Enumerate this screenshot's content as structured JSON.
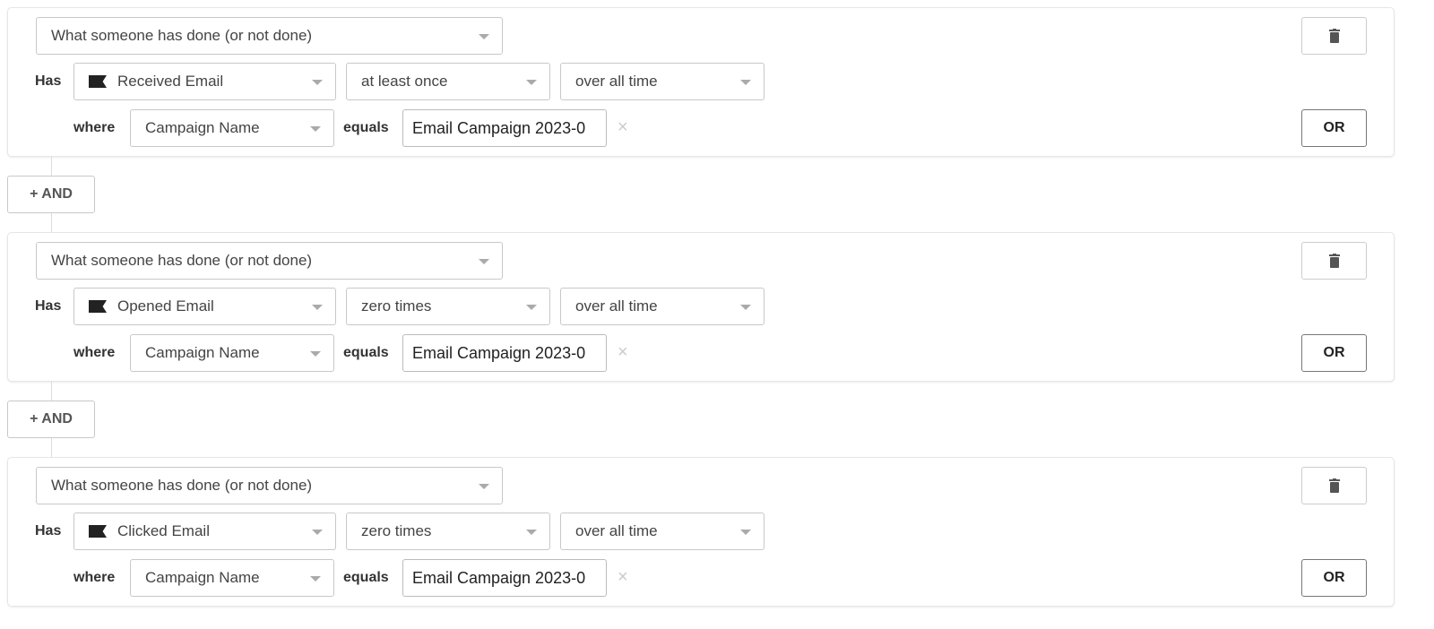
{
  "and_label": "+ AND",
  "conditions": [
    {
      "type": "What someone has done (or not done)",
      "has_label": "Has",
      "event": "Received Email",
      "event_icon": "flag-icon",
      "frequency": "at least once",
      "timeframe": "over all time",
      "where_label": "where",
      "property": "Campaign Name",
      "operator": "equals",
      "value": "Email Campaign 2023-0",
      "clear": "×",
      "or_label": "OR"
    },
    {
      "type": "What someone has done (or not done)",
      "has_label": "Has",
      "event": "Opened Email",
      "event_icon": "flag-icon",
      "frequency": "zero times",
      "timeframe": "over all time",
      "where_label": "where",
      "property": "Campaign Name",
      "operator": "equals",
      "value": "Email Campaign 2023-0",
      "clear": "×",
      "or_label": "OR"
    },
    {
      "type": "What someone has done (or not done)",
      "has_label": "Has",
      "event": "Clicked Email",
      "event_icon": "flag-icon",
      "frequency": "zero times",
      "timeframe": "over all time",
      "where_label": "where",
      "property": "Campaign Name",
      "operator": "equals",
      "value": "Email Campaign 2023-0",
      "clear": "×",
      "or_label": "OR"
    }
  ]
}
